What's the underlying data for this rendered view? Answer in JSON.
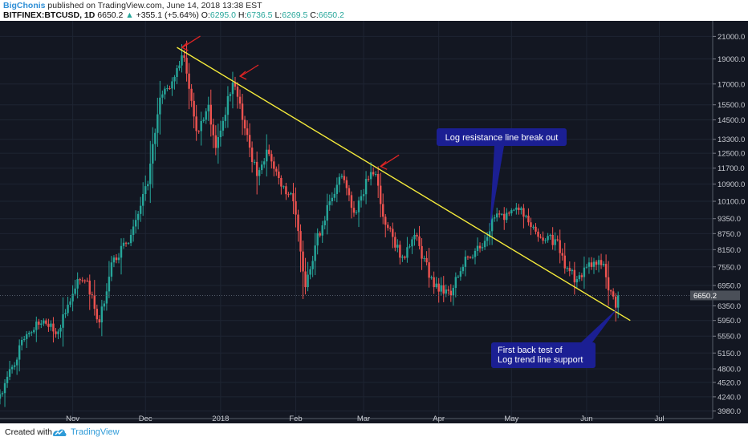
{
  "header": {
    "author": "BigChonis",
    "published": " published on TradingView.com, June 14, 2018 13:38 EST",
    "symbol": "BITFINEX:BTCUSD, 1D",
    "last": " 6650.2 ",
    "change_arrow": "▲",
    "change": " +355.1 (+5.64%) ",
    "open_label": "O:",
    "open": "6295.0",
    "high_label": " H:",
    "high": "6736.5",
    "low_label": " L:",
    "low": "6269.5",
    "close_label": " C:",
    "close": "6650.2"
  },
  "footer": {
    "created": "Created with",
    "brand": "TradingView"
  },
  "colors": {
    "up": "#26a69a",
    "down": "#ef5350",
    "background": "#131722",
    "trendline": "#f5eb3b",
    "annotation_bg": "#1b1f93",
    "arrow": "#e02424"
  },
  "chart_data": {
    "type": "candlestick",
    "scale": "log",
    "price_axis_ticks": [
      21000.0,
      19000.0,
      17000.0,
      15500.0,
      14500.0,
      13300.0,
      12500.0,
      11700.0,
      10900.0,
      10100.0,
      9350.0,
      8750.0,
      8150.0,
      7550.0,
      6950.0,
      6350.0,
      5950.0,
      5550.0,
      5150.0,
      4800.0,
      4520.0,
      4240.0,
      3980.0
    ],
    "price_axis_tick_labels": [
      "21000.0",
      "19000.0",
      "17000.0",
      "15500.0",
      "14500.0",
      "13300.0",
      "12500.0",
      "11700.0",
      "10900.0",
      "10100.0",
      "9350.0",
      "8750.0",
      "8150.0",
      "7550.0",
      "6950.0",
      "6350.0",
      "5950.0",
      "5550.0",
      "5150.0",
      "4800.0",
      "4520.0",
      "4240.0",
      "3980.0"
    ],
    "ylim": [
      3850,
      22500
    ],
    "time_axis_labels": [
      "Nov",
      "Dec",
      "2018",
      "Feb",
      "Mar",
      "Apr",
      "May",
      "Jun",
      "Jul"
    ],
    "time_axis_dates": [
      "2017-11-01",
      "2017-12-01",
      "2018-01-01",
      "2018-02-01",
      "2018-03-01",
      "2018-04-01",
      "2018-05-01",
      "2018-06-01",
      "2018-07-01"
    ],
    "xlim": [
      "2017-10-02",
      "2018-07-23"
    ],
    "last_price_label": "6650.2",
    "key_points": [
      {
        "date": "2017-10-02",
        "close": 4290
      },
      {
        "date": "2017-10-13",
        "close": 5600
      },
      {
        "date": "2017-10-20",
        "close": 5950
      },
      {
        "date": "2017-10-25",
        "close": 5600
      },
      {
        "date": "2017-10-29",
        "close": 6150
      },
      {
        "date": "2017-11-03",
        "close": 7150
      },
      {
        "date": "2017-11-07",
        "close": 7100
      },
      {
        "date": "2017-11-12",
        "close": 5900
      },
      {
        "date": "2017-11-17",
        "close": 7700
      },
      {
        "date": "2017-11-25",
        "close": 8700
      },
      {
        "date": "2017-11-29",
        "close": 9900
      },
      {
        "date": "2017-12-02",
        "close": 10900
      },
      {
        "date": "2017-12-07",
        "close": 16000
      },
      {
        "date": "2017-12-12",
        "close": 17200
      },
      {
        "date": "2017-12-16",
        "close": 19300
      },
      {
        "date": "2017-12-17",
        "close": 19100
      },
      {
        "date": "2017-12-22",
        "close": 13800
      },
      {
        "date": "2017-12-27",
        "close": 15500
      },
      {
        "date": "2017-12-30",
        "close": 12800
      },
      {
        "date": "2018-01-06",
        "close": 17100
      },
      {
        "date": "2018-01-07",
        "close": 16800
      },
      {
        "date": "2018-01-10",
        "close": 14500
      },
      {
        "date": "2018-01-16",
        "close": 11300
      },
      {
        "date": "2018-01-20",
        "close": 12700
      },
      {
        "date": "2018-01-25",
        "close": 11200
      },
      {
        "date": "2018-01-31",
        "close": 10100
      },
      {
        "date": "2018-02-05",
        "close": 6900
      },
      {
        "date": "2018-02-09",
        "close": 8300
      },
      {
        "date": "2018-02-15",
        "close": 10100
      },
      {
        "date": "2018-02-20",
        "close": 11300
      },
      {
        "date": "2018-02-25",
        "close": 9600
      },
      {
        "date": "2018-03-04",
        "close": 11500
      },
      {
        "date": "2018-03-06",
        "close": 11400
      },
      {
        "date": "2018-03-10",
        "close": 9100
      },
      {
        "date": "2018-03-17",
        "close": 7900
      },
      {
        "date": "2018-03-22",
        "close": 8700
      },
      {
        "date": "2018-03-30",
        "close": 6900
      },
      {
        "date": "2018-04-06",
        "close": 6650
      },
      {
        "date": "2018-04-12",
        "close": 7900
      },
      {
        "date": "2018-04-18",
        "close": 8200
      },
      {
        "date": "2018-04-24",
        "close": 9400
      },
      {
        "date": "2018-04-28",
        "close": 9300
      },
      {
        "date": "2018-05-05",
        "close": 9800
      },
      {
        "date": "2018-05-08",
        "close": 9200
      },
      {
        "date": "2018-05-15",
        "close": 8500
      },
      {
        "date": "2018-05-20",
        "close": 8500
      },
      {
        "date": "2018-05-23",
        "close": 7500
      },
      {
        "date": "2018-05-28",
        "close": 7150
      },
      {
        "date": "2018-06-01",
        "close": 7550
      },
      {
        "date": "2018-06-08",
        "close": 7650
      },
      {
        "date": "2018-06-10",
        "close": 6800
      },
      {
        "date": "2018-06-13",
        "close": 6300
      },
      {
        "date": "2018-06-14",
        "close": 6650
      }
    ],
    "trendline": {
      "from": {
        "date": "2017-12-14",
        "price": 20000
      },
      "to": {
        "date": "2018-06-19",
        "price": 5950
      }
    },
    "annotations": [
      {
        "text": "Log resistance line break out",
        "target": {
          "date": "2018-04-22",
          "price": 8900
        }
      },
      {
        "text_lines": [
          "First back test of",
          "Log trend line support"
        ],
        "target": {
          "date": "2018-06-14",
          "price": 6300
        }
      }
    ],
    "arrows_to": [
      {
        "date": "2017-12-15",
        "price": 20000
      },
      {
        "date": "2018-01-08",
        "price": 17600
      },
      {
        "date": "2018-03-07",
        "price": 11800
      }
    ]
  }
}
